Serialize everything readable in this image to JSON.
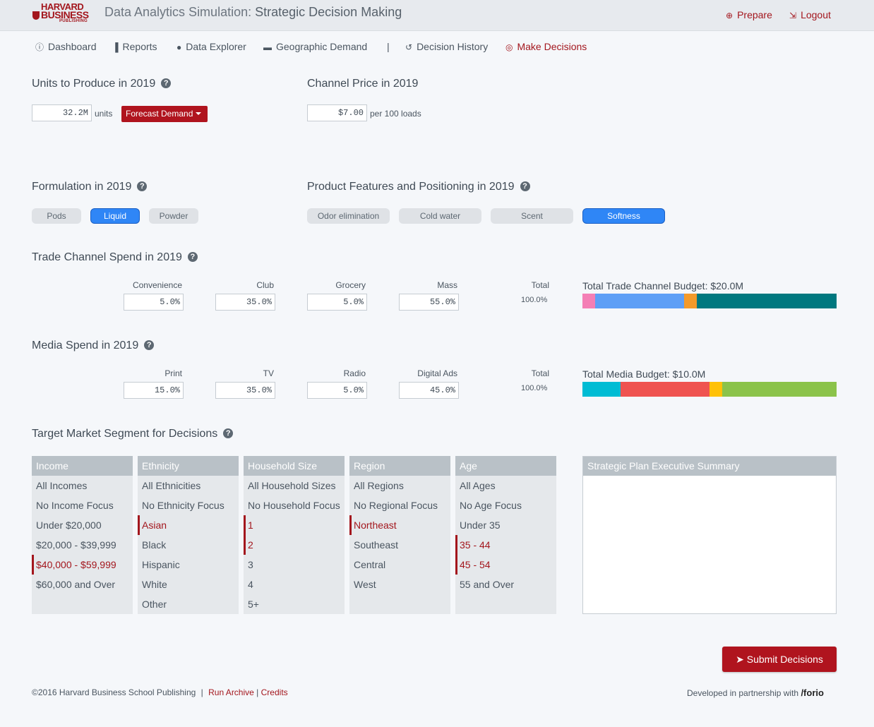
{
  "header": {
    "logo": {
      "line1": "HARVARD",
      "line2": "BUSINESS",
      "line3": "PUBLISHING"
    },
    "app_title": "Data Analytics Simulation:",
    "app_subtitle": "Strategic Decision Making",
    "prepare": "Prepare",
    "logout": "Logout"
  },
  "nav": {
    "dashboard": "Dashboard",
    "reports": "Reports",
    "data_explorer": "Data Explorer",
    "geographic_demand": "Geographic Demand",
    "separator": "|",
    "decision_history": "Decision History",
    "make_decisions": "Make Decisions"
  },
  "units": {
    "title": "Units to Produce in 2019",
    "value": "32.2M",
    "unit": "units",
    "forecast_button": "Forecast Demand"
  },
  "price": {
    "title": "Channel Price in 2019",
    "value": "$7.00",
    "unit": "per 100 loads"
  },
  "formulation": {
    "title": "Formulation in 2019",
    "options": [
      "Pods",
      "Liquid",
      "Powder"
    ],
    "selected": "Liquid"
  },
  "features": {
    "title": "Product Features and Positioning in 2019",
    "options": [
      "Odor elimination",
      "Cold water",
      "Scent",
      "Softness"
    ],
    "selected": "Softness"
  },
  "trade": {
    "title": "Trade Channel Spend in 2019",
    "columns": [
      "Convenience",
      "Club",
      "Grocery",
      "Mass"
    ],
    "values": [
      "5.0%",
      "35.0%",
      "5.0%",
      "55.0%"
    ],
    "total_label": "Total",
    "total_value": "100.0%",
    "budget_label": "Total Trade Channel Budget: $20.0M",
    "bar_percents": [
      5,
      35,
      5,
      55
    ],
    "bar_colors": [
      "#f47fb5",
      "#5e9ff6",
      "#f39a2a",
      "#00787f"
    ]
  },
  "media": {
    "title": "Media Spend in 2019",
    "columns": [
      "Print",
      "TV",
      "Radio",
      "Digital Ads"
    ],
    "values": [
      "15.0%",
      "35.0%",
      "5.0%",
      "45.0%"
    ],
    "total_label": "Total",
    "total_value": "100.0%",
    "budget_label": "Total Media Budget: $10.0M",
    "bar_percents": [
      15,
      35,
      5,
      45
    ],
    "bar_colors": [
      "#00bcd4",
      "#ef5350",
      "#ffc107",
      "#8bc34a"
    ]
  },
  "target": {
    "title": "Target Market Segment for Decisions",
    "income": {
      "head": "Income",
      "items": [
        "All Incomes",
        "No Income Focus",
        "Under $20,000",
        "$20,000 - $39,999",
        "$40,000 - $59,999",
        "$60,000 and Over"
      ],
      "selected": [
        4
      ]
    },
    "ethnicity": {
      "head": "Ethnicity",
      "items": [
        "All Ethnicities",
        "No Ethnicity Focus",
        "Asian",
        "Black",
        "Hispanic",
        "White",
        "Other"
      ],
      "selected": [
        2
      ]
    },
    "household": {
      "head": "Household Size",
      "items": [
        "All Household Sizes",
        "No Household Focus",
        "1",
        "2",
        "3",
        "4",
        "5+"
      ],
      "selected": [
        2,
        3
      ]
    },
    "region": {
      "head": "Region",
      "items": [
        "All Regions",
        "No Regional Focus",
        "Northeast",
        "Southeast",
        "Central",
        "West"
      ],
      "selected": [
        2
      ]
    },
    "age": {
      "head": "Age",
      "items": [
        "All Ages",
        "No Age Focus",
        "Under 35",
        "35 - 44",
        "45 - 54",
        "55 and Over"
      ],
      "selected": [
        3,
        4
      ]
    }
  },
  "summary": {
    "title": "Strategic Plan Executive Summary",
    "value": ""
  },
  "submit_label": "Submit Decisions",
  "footer": {
    "copyright": "©2016 Harvard Business School Publishing",
    "sep1": "|",
    "run_archive": "Run Archive",
    "sep2": "|",
    "credits": "Credits",
    "partner_text": "Developed in partnership with",
    "partner_name": "/forio"
  }
}
